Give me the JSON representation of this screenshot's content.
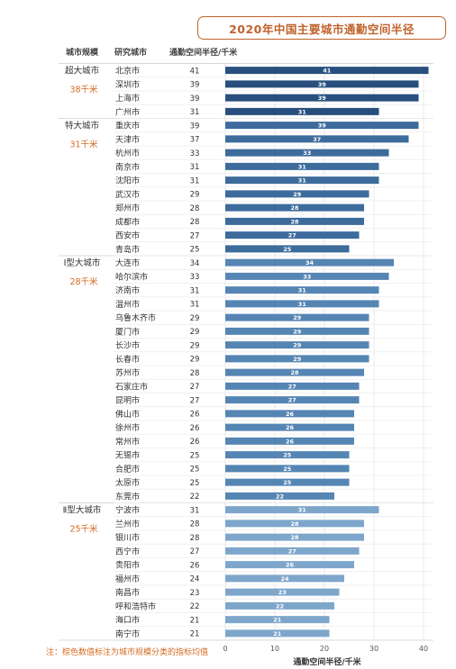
{
  "title": "2020年中国主要城市通勤空间半径",
  "note": "注：棕色数值标注为城市规模分类的指标均值",
  "colors": {
    "title": "#c0622b",
    "average": "#d46a1f",
    "tier_bars": [
      "#284f7d",
      "#3d6b9c",
      "#5585b3",
      "#7ea6cb"
    ]
  },
  "chart_data": {
    "type": "bar",
    "orientation": "horizontal",
    "headers": [
      "城市规模",
      "研究城市",
      "通勤空间半径/千米"
    ],
    "xlabel": "通勤空间半径/千米",
    "xlim": [
      0,
      42
    ],
    "xticks": [
      0,
      10,
      20,
      30,
      40
    ],
    "groups": [
      {
        "name": "超大城市",
        "avg": "38千米",
        "cities": [
          "北京市",
          "深圳市",
          "上海市",
          "广州市"
        ],
        "values": [
          41,
          39,
          39,
          31
        ]
      },
      {
        "name": "特大城市",
        "avg": "31千米",
        "cities": [
          "重庆市",
          "天津市",
          "杭州市",
          "南京市",
          "沈阳市",
          "武汉市",
          "郑州市",
          "成都市",
          "西安市",
          "青岛市"
        ],
        "values": [
          39,
          37,
          33,
          31,
          31,
          29,
          28,
          28,
          27,
          25
        ]
      },
      {
        "name": "Ⅰ型大城市",
        "avg": "28千米",
        "cities": [
          "大连市",
          "哈尔滨市",
          "济南市",
          "温州市",
          "乌鲁木齐市",
          "厦门市",
          "长沙市",
          "长春市",
          "苏州市",
          "石家庄市",
          "昆明市",
          "佛山市",
          "徐州市",
          "常州市",
          "无锡市",
          "合肥市",
          "太原市",
          "东莞市"
        ],
        "values": [
          34,
          33,
          31,
          31,
          29,
          29,
          29,
          29,
          28,
          27,
          27,
          26,
          26,
          26,
          25,
          25,
          25,
          22
        ]
      },
      {
        "name": "Ⅱ型大城市",
        "avg": "25千米",
        "cities": [
          "宁波市",
          "兰州市",
          "银川市",
          "西宁市",
          "贵阳市",
          "福州市",
          "南昌市",
          "呼和浩特市",
          "海口市",
          "南宁市"
        ],
        "values": [
          31,
          28,
          28,
          27,
          26,
          24,
          23,
          22,
          21,
          21
        ]
      }
    ]
  }
}
